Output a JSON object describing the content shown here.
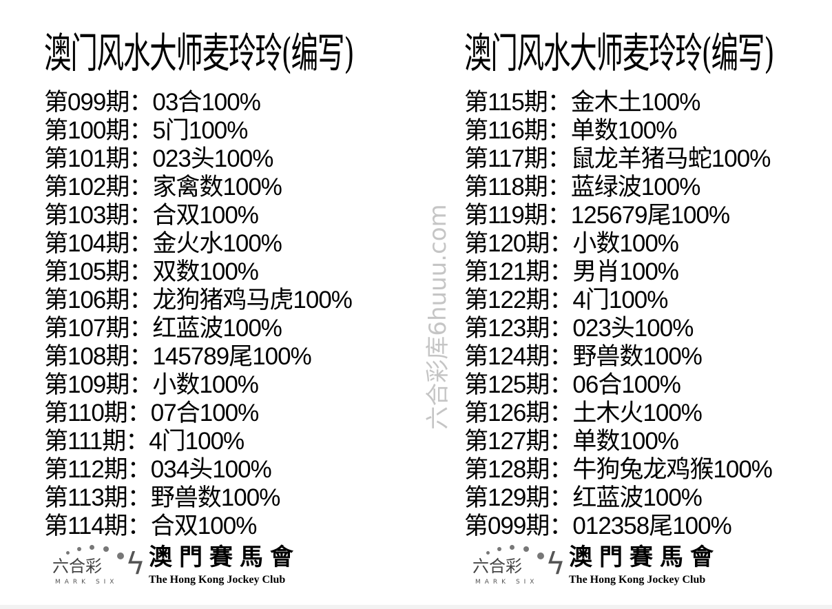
{
  "left": {
    "title": "澳门风水大师麦玲玲(编写)",
    "rows": [
      "第099期：03合100%",
      "第100期：5门100%",
      "第101期：023头100%",
      "第102期：家禽数100%",
      "第103期：合双100%",
      "第104期：金火水100%",
      "第105期：双数100%",
      "第106期：龙狗猪鸡马虎100%",
      "第107期：红蓝波100%",
      "第108期：145789尾100%",
      "第109期：小数100%",
      "第110期：07合100%",
      "第111期：4门100%",
      "第112期：034头100%",
      "第113期：野兽数100%",
      "第114期：合双100%"
    ]
  },
  "right": {
    "title": "澳门风水大师麦玲玲(编写)",
    "rows": [
      "第115期：金木土100%",
      "第116期：单数100%",
      "第117期：鼠龙羊猪马蛇100%",
      "第118期：蓝绿波100%",
      "第119期：125679尾100%",
      "第120期：小数100%",
      "第121期：男肖100%",
      "第122期：4门100%",
      "第123期：023头100%",
      "第124期：野兽数100%",
      "第125期：06合100%",
      "第126期：土木火100%",
      "第127期：单数100%",
      "第128期：牛狗兔龙鸡猴100%",
      "第129期：红蓝波100%",
      "第099期：012358尾100%"
    ]
  },
  "logo": {
    "six_text": "六合彩",
    "mark_six": "MARK SIX",
    "chinese": "澳門賽馬會",
    "english": "The Hong Kong Jockey Club"
  },
  "watermark": "六合彩库6huuu.com"
}
